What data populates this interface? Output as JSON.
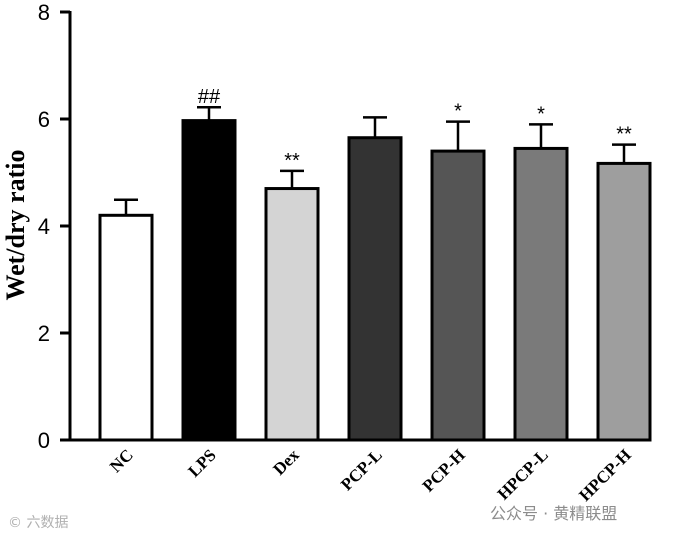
{
  "chart_data": {
    "type": "bar",
    "title": "",
    "xlabel": "",
    "ylabel": "Wet/dry ratio",
    "ylim": [
      0,
      8
    ],
    "yticks": [
      0,
      2,
      4,
      6,
      8
    ],
    "categories": [
      "NC",
      "LPS",
      "Dex",
      "PCP-L",
      "PCP-H",
      "HPCP-L",
      "HPCP-H"
    ],
    "values": [
      4.2,
      5.97,
      4.7,
      5.65,
      5.4,
      5.45,
      5.17
    ],
    "errors": [
      0.29,
      0.25,
      0.33,
      0.38,
      0.55,
      0.45,
      0.35
    ],
    "significance": [
      "",
      "##",
      "**",
      "",
      "*",
      "*",
      "**"
    ],
    "bar_fill_colors": [
      "#ffffff",
      "#000000",
      "#d4d4d4",
      "#333333",
      "#555555",
      "#7a7a7a",
      "#9e9e9e"
    ],
    "bar_edge_color": "#000000"
  },
  "watermark": {
    "left": "© 六数据",
    "right": "公众号 · 黄精联盟"
  }
}
